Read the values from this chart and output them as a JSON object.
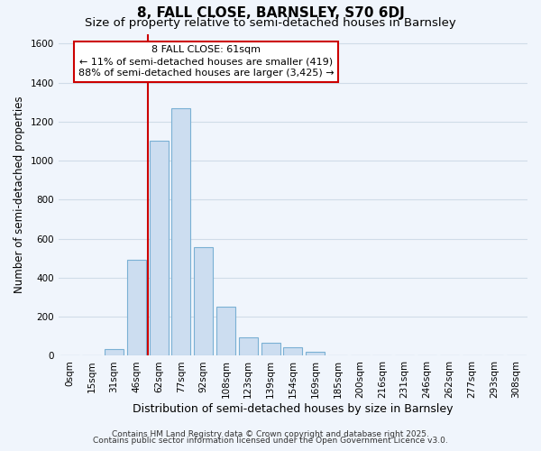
{
  "title": "8, FALL CLOSE, BARNSLEY, S70 6DJ",
  "subtitle": "Size of property relative to semi-detached houses in Barnsley",
  "xlabel": "Distribution of semi-detached houses by size in Barnsley",
  "ylabel": "Number of semi-detached properties",
  "bar_labels": [
    "0sqm",
    "15sqm",
    "31sqm",
    "46sqm",
    "62sqm",
    "77sqm",
    "92sqm",
    "108sqm",
    "123sqm",
    "139sqm",
    "154sqm",
    "169sqm",
    "185sqm",
    "200sqm",
    "216sqm",
    "231sqm",
    "246sqm",
    "262sqm",
    "277sqm",
    "293sqm",
    "308sqm"
  ],
  "bar_values": [
    0,
    0,
    35,
    490,
    1100,
    1270,
    555,
    250,
    95,
    65,
    42,
    20,
    0,
    0,
    0,
    0,
    0,
    0,
    0,
    0,
    0
  ],
  "bar_color": "#ccddf0",
  "bar_edge_color": "#7ab0d4",
  "ylim": [
    0,
    1650
  ],
  "yticks": [
    0,
    200,
    400,
    600,
    800,
    1000,
    1200,
    1400,
    1600
  ],
  "property_line_bin": 4,
  "annotation_title": "8 FALL CLOSE: 61sqm",
  "annotation_line1": "← 11% of semi-detached houses are smaller (419)",
  "annotation_line2": "88% of semi-detached houses are larger (3,425) →",
  "annotation_box_color": "#ffffff",
  "annotation_box_edge": "#cc0000",
  "vline_color": "#cc0000",
  "footer1": "Contains HM Land Registry data © Crown copyright and database right 2025.",
  "footer2": "Contains public sector information licensed under the Open Government Licence v3.0.",
  "background_color": "#f0f5fc",
  "plot_background": "#f0f5fc",
  "grid_color": "#d0dce8",
  "title_fontsize": 11,
  "subtitle_fontsize": 9.5,
  "xlabel_fontsize": 9,
  "ylabel_fontsize": 8.5,
  "tick_fontsize": 7.5,
  "annotation_fontsize": 8,
  "footer_fontsize": 6.5
}
